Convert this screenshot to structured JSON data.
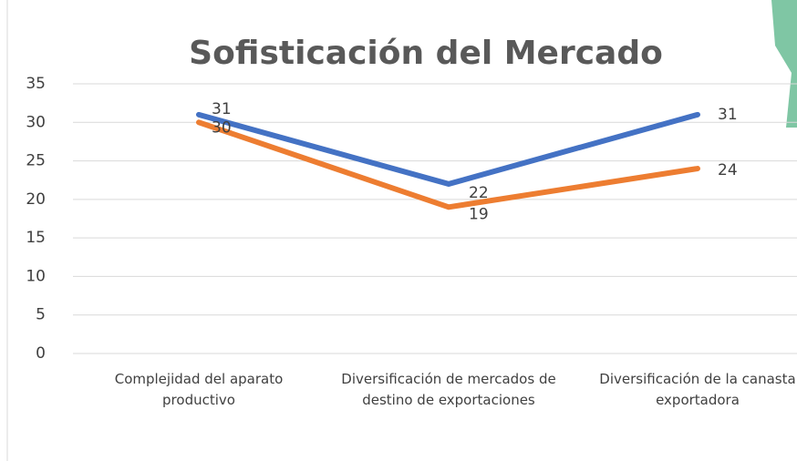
{
  "chart_data": {
    "type": "line",
    "title": "Sofisticación del Mercado",
    "categories": [
      "Complejidad del aparato productivo",
      "Diversificación de mercados de destino de exportaciones",
      "Diversificación de la canasta exportadora"
    ],
    "series": [
      {
        "color": "#4472c4",
        "values": [
          31,
          22,
          31
        ]
      },
      {
        "color": "#ed7d31",
        "values": [
          30,
          19,
          24
        ]
      }
    ],
    "ylim": [
      0,
      35
    ],
    "yticks": [
      0,
      5,
      10,
      15,
      20,
      25,
      30,
      35
    ],
    "grid": true
  }
}
